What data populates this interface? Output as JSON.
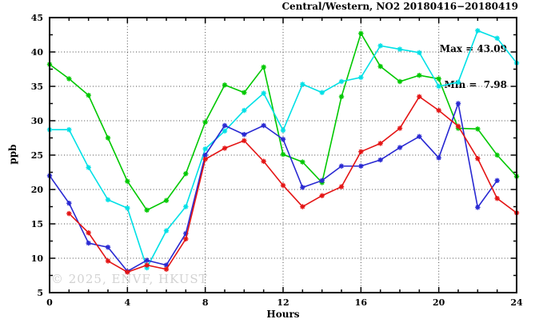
{
  "chart_data": {
    "type": "line",
    "title": "Central/Western, NO2 20180416−20180419",
    "xlabel": "Hours",
    "ylabel": "ppb",
    "xlim": [
      0,
      24
    ],
    "ylim": [
      5,
      45
    ],
    "x_major_ticks": [
      0,
      4,
      8,
      12,
      16,
      20,
      24
    ],
    "x_minor_step": 1,
    "y_major_ticks": [
      5,
      10,
      15,
      20,
      25,
      30,
      35,
      40,
      45
    ],
    "y_minor_step": 2.5,
    "grid": true,
    "legend": "none",
    "stats": {
      "max_label": "Max = 43.09",
      "min_label": "Min =  7.98"
    },
    "watermark": "© 2025, ENVF, HKUST",
    "hours": [
      0,
      1,
      2,
      3,
      4,
      5,
      6,
      7,
      8,
      9,
      10,
      11,
      12,
      13,
      14,
      15,
      16,
      17,
      18,
      19,
      20,
      21,
      22,
      23,
      24
    ],
    "series": [
      {
        "name": "green-line",
        "color": "#00c800",
        "values": [
          38.2,
          36.1,
          33.7,
          27.5,
          21.2,
          17.0,
          18.4,
          22.3,
          29.8,
          35.2,
          34.1,
          37.8,
          25.1,
          24.0,
          21.0,
          33.5,
          42.7,
          37.9,
          35.7,
          36.6,
          36.1,
          28.9,
          28.8,
          25.0,
          21.9
        ]
      },
      {
        "name": "cyan-line",
        "color": "#00e0e6",
        "values": [
          28.7,
          28.7,
          23.2,
          18.5,
          17.3,
          8.6,
          14.0,
          17.5,
          25.9,
          28.5,
          31.5,
          34.0,
          28.6,
          35.3,
          34.1,
          35.7,
          36.3,
          40.9,
          40.4,
          39.9,
          35.0,
          35.6,
          43.1,
          42.0,
          38.4
        ]
      },
      {
        "name": "blue-line",
        "color": "#2828d2",
        "values": [
          22.0,
          18.0,
          12.2,
          11.6,
          8.1,
          9.7,
          9.0,
          13.6,
          25.0,
          29.3,
          28.0,
          29.3,
          27.3,
          20.3,
          21.3,
          23.4,
          23.4,
          24.3,
          26.1,
          27.7,
          24.6,
          32.5,
          17.4,
          21.3,
          null
        ]
      },
      {
        "name": "red-line",
        "color": "#e41414",
        "values": [
          null,
          16.5,
          13.7,
          9.6,
          7.98,
          9.0,
          8.4,
          12.8,
          24.4,
          26.0,
          27.1,
          24.1,
          20.6,
          17.5,
          19.1,
          20.4,
          25.5,
          26.7,
          28.9,
          33.5,
          31.5,
          29.2,
          24.5,
          18.7,
          16.6
        ]
      }
    ]
  }
}
